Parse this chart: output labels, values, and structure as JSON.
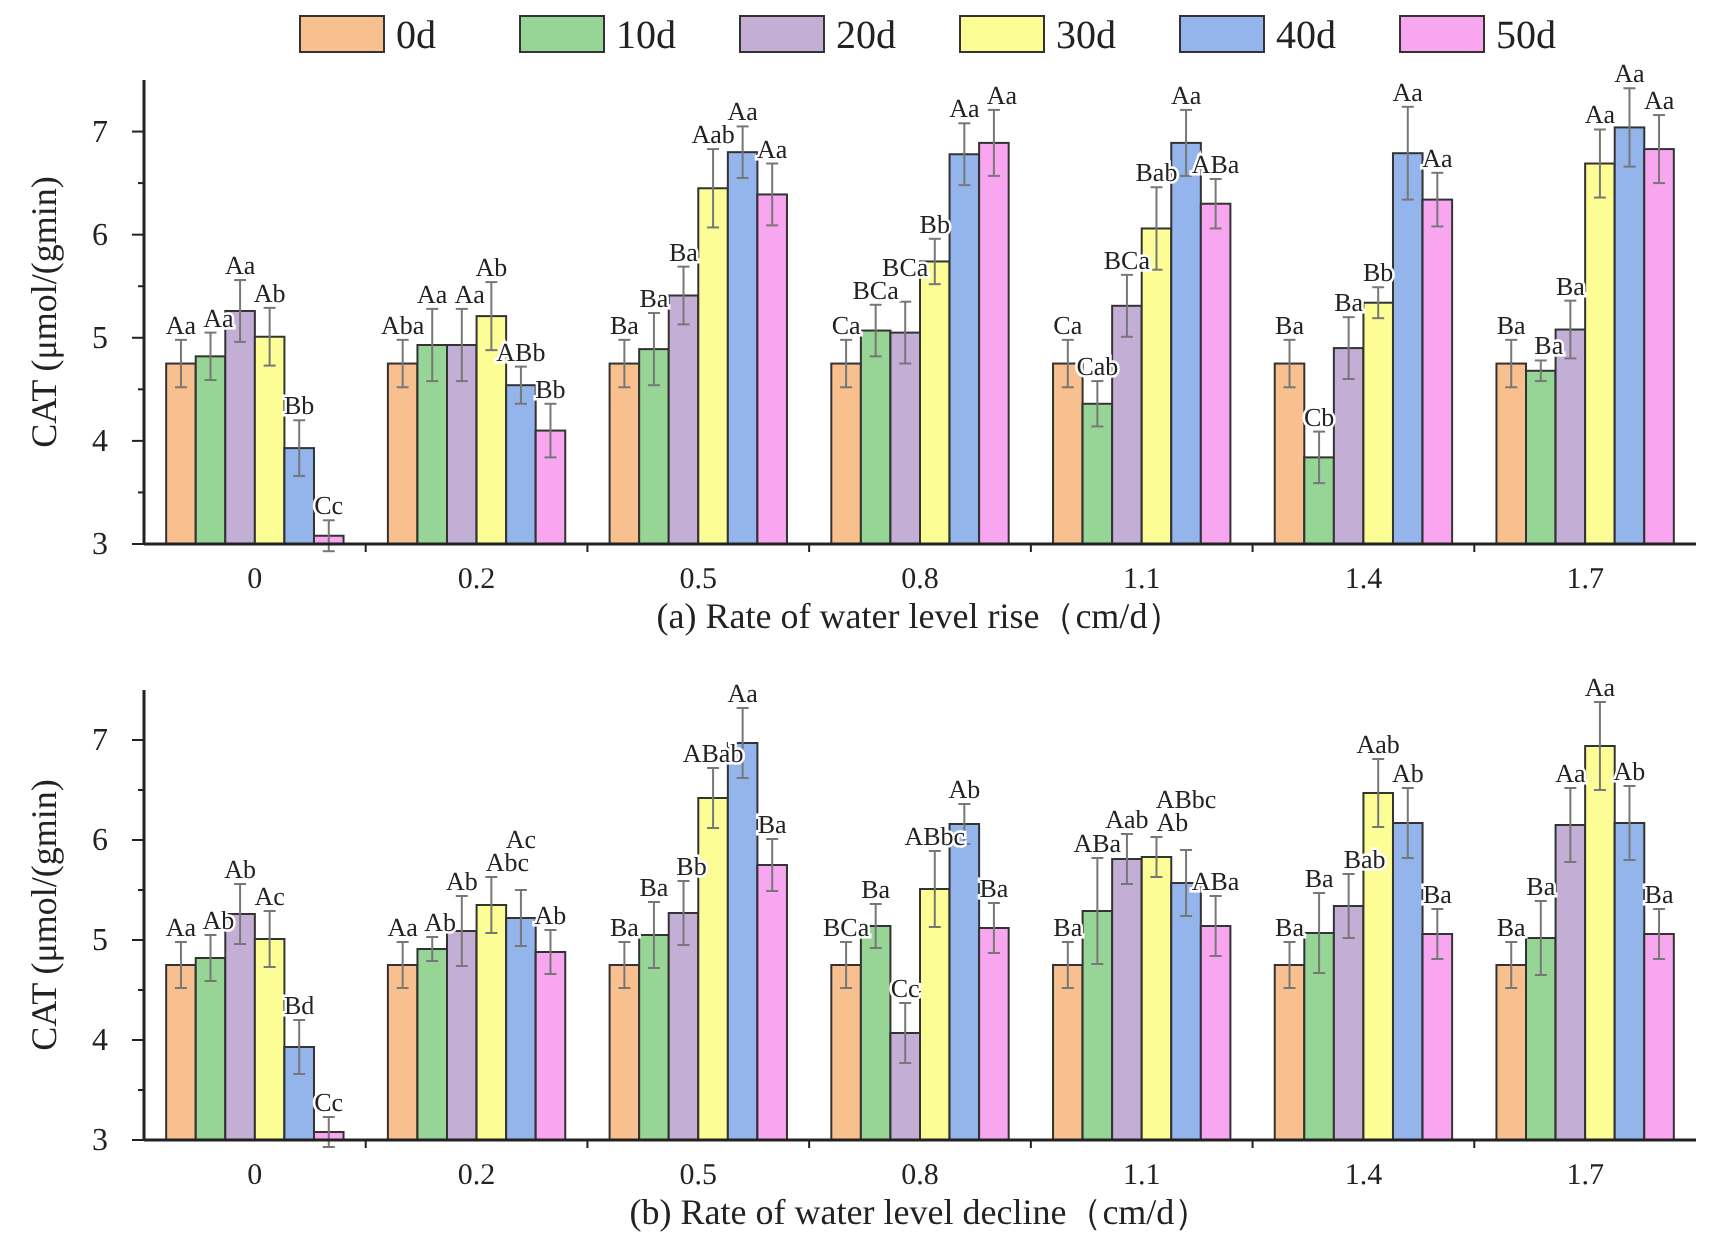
{
  "chart_data": [
    {
      "type": "bar",
      "xlabel": "(a) Rate of water level rise（cm/d）",
      "ylabel": "CAT (μmol/(gmin)",
      "categories": [
        "0",
        "0.2",
        "0.5",
        "0.8",
        "1.1",
        "1.4",
        "1.7"
      ],
      "ylim": [
        3,
        7.5
      ],
      "yticks": [
        3,
        {
          "value": 3.5,
          "label": null
        },
        4,
        {
          "value": 4.5,
          "label": null
        },
        5,
        {
          "value": 5.5,
          "label": null
        },
        6,
        {
          "value": 6.5,
          "label": null
        },
        7
      ],
      "legend": "top",
      "grid": false,
      "series": [
        {
          "name": "0d",
          "color": "#f9c08f",
          "values": [
            4.75,
            4.75,
            4.75,
            4.75,
            4.75,
            4.75,
            4.75
          ],
          "errors": [
            0.23,
            0.23,
            0.23,
            0.23,
            0.23,
            0.23,
            0.23
          ],
          "value_labels": [
            "Aa",
            "Aba",
            "Ba",
            "Ca",
            "Ca",
            "Ba",
            "Ba"
          ]
        },
        {
          "name": "10d",
          "color": "#96d596",
          "values": [
            4.82,
            4.93,
            4.89,
            5.07,
            4.36,
            3.84,
            4.68
          ],
          "errors": [
            0.23,
            0.35,
            0.35,
            0.25,
            0.22,
            0.25,
            0.1
          ],
          "value_labels": [
            "Aa",
            "Aa",
            "Ba",
            "BCa",
            "Cab",
            "Cb",
            "Ba"
          ]
        },
        {
          "name": "20d",
          "color": "#c3aed6",
          "values": [
            5.26,
            4.93,
            5.41,
            5.05,
            5.31,
            4.9,
            5.08
          ],
          "errors": [
            0.3,
            0.35,
            0.28,
            0.3,
            0.3,
            0.3,
            0.28
          ],
          "value_labels": [
            "Aa",
            "Aa",
            "Ba",
            "BCa",
            "BCa",
            "Ba",
            "Ba"
          ]
        },
        {
          "name": "30d",
          "color": "#fdfd96",
          "values": [
            5.01,
            5.21,
            6.45,
            5.74,
            6.06,
            5.34,
            6.69
          ],
          "errors": [
            0.28,
            0.33,
            0.38,
            0.22,
            0.4,
            0.15,
            0.33
          ],
          "value_labels": [
            "Ab",
            "Ab",
            "Aab",
            "Bb",
            "Bab",
            "Bb",
            "Aa"
          ]
        },
        {
          "name": "40d",
          "color": "#94b4ec",
          "values": [
            3.93,
            4.54,
            6.8,
            6.78,
            6.89,
            6.79,
            7.04
          ],
          "errors": [
            0.27,
            0.18,
            0.25,
            0.3,
            0.32,
            0.45,
            0.38
          ],
          "value_labels": [
            "Bb",
            "ABb",
            "Aa",
            "Aa",
            "Aa",
            "Aa",
            "Aa"
          ]
        },
        {
          "name": "50d",
          "color": "#f9a6f0",
          "values": [
            3.08,
            4.1,
            6.39,
            6.89,
            6.3,
            6.34,
            6.83
          ],
          "errors": [
            0.15,
            0.26,
            0.3,
            0.32,
            0.24,
            0.26,
            0.33
          ],
          "value_labels": [
            "Cc",
            "Bb",
            "Aa",
            "Aa",
            "ABa",
            "Aa",
            "Aa"
          ]
        }
      ]
    },
    {
      "type": "bar",
      "xlabel": "(b) Rate of water level decline（cm/d）",
      "ylabel": "CAT (μmol/(gmin)",
      "categories": [
        "0",
        "0.2",
        "0.5",
        "0.8",
        "1.1",
        "1.4",
        "1.7"
      ],
      "ylim": [
        3,
        7.5
      ],
      "yticks": [
        3,
        {
          "value": 3.5,
          "label": null
        },
        4,
        {
          "value": 4.5,
          "label": null
        },
        5,
        {
          "value": 5.5,
          "label": null
        },
        6,
        {
          "value": 6.5,
          "label": null
        },
        7
      ],
      "grid": false,
      "series": [
        {
          "color": "#f9c08f",
          "values": [
            4.75,
            4.75,
            4.75,
            4.75,
            4.75,
            4.75,
            4.75
          ],
          "errors": [
            0.23,
            0.23,
            0.23,
            0.23,
            0.23,
            0.23,
            0.23
          ],
          "value_labels": [
            "Aa",
            "Aa",
            "Ba",
            "BCa",
            "Ba",
            "Ba",
            "Ba"
          ]
        },
        {
          "color": "#96d596",
          "values": [
            4.82,
            4.91,
            5.05,
            5.14,
            5.29,
            5.07,
            5.02
          ],
          "errors": [
            0.23,
            0.12,
            0.33,
            0.22,
            0.53,
            0.4,
            0.37
          ],
          "value_labels": [
            "Ab",
            "Ab",
            "Ba",
            "Ba",
            "ABa",
            "Ba",
            "Ba"
          ]
        },
        {
          "color": "#c3aed6",
          "values": [
            5.26,
            5.09,
            5.27,
            4.07,
            5.81,
            5.34,
            6.15
          ],
          "errors": [
            0.3,
            0.35,
            0.32,
            0.3,
            0.25,
            0.32,
            0.37
          ],
          "value_labels": [
            "Ab",
            "Ab",
            "Bb",
            "Cc",
            "Aab",
            "Bab",
            "Aa"
          ]
        },
        {
          "color": "#fdfd96",
          "values": [
            5.01,
            5.35,
            6.42,
            5.51,
            5.83,
            6.47,
            6.94
          ],
          "errors": [
            0.28,
            0.28,
            0.3,
            0.38,
            0.2,
            0.34,
            0.44
          ],
          "value_labels": [
            "Ac",
            "Abc",
            "ABab",
            "ABbc",
            "Ab",
            "Aab",
            "Aa"
          ]
        },
        {
          "color": "#94b4ec",
          "values": [
            3.93,
            5.22,
            6.97,
            6.16,
            5.57,
            6.17,
            6.17
          ],
          "errors": [
            0.27,
            0.28,
            0.35,
            0.2,
            0.33,
            0.35,
            0.37
          ],
          "value_labels": [
            "Bd",
            "Ac",
            "Aa",
            "Ab",
            "ABbc",
            "Ab",
            "Ab"
          ]
        },
        {
          "color": "#f9a6f0",
          "values": [
            3.08,
            4.88,
            5.75,
            5.12,
            5.14,
            5.06,
            5.06
          ],
          "errors": [
            0.15,
            0.22,
            0.26,
            0.25,
            0.3,
            0.25,
            0.25
          ],
          "value_labels": [
            "Cc",
            "Ab",
            "Ba",
            "Ba",
            "ABa",
            "Ba",
            "Ba"
          ]
        }
      ]
    }
  ]
}
